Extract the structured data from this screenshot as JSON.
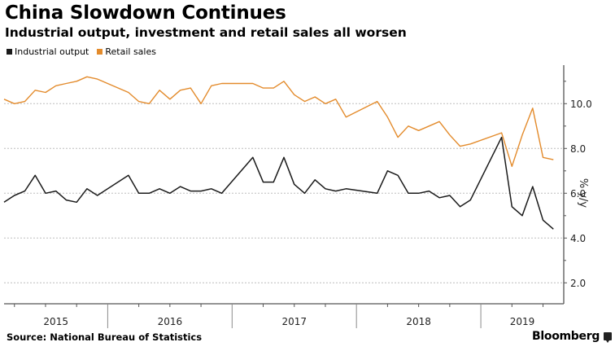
{
  "header": {
    "title": "China Slowdown Continues",
    "subtitle": "Industrial output, investment and retail sales all worsen"
  },
  "footer": {
    "source": "Source: National Bureau of Statistics",
    "brand": "Bloomberg"
  },
  "colors": {
    "industrial": "#1a1a1a",
    "retail": "#e38b2c",
    "grid": "#bdbdbd",
    "axis": "#555555"
  },
  "chart_data": {
    "type": "line",
    "title": "China Slowdown Continues",
    "subtitle": "Industrial output, investment and retail sales all worsen",
    "xlabel": "",
    "ylabel": "% y/y",
    "y_axis_side": "right",
    "ylim": [
      0.9,
      11.8
    ],
    "yticks": [
      2.0,
      4.0,
      6.0,
      8.0,
      10.0
    ],
    "yticks_minor": [
      3.0,
      5.0,
      7.0,
      9.0,
      11.0
    ],
    "ytick_labels": [
      "2.0",
      "4.0",
      "6.0",
      "8.0",
      "10.0"
    ],
    "grid": "horizontal dotted",
    "legend_position": "top-left",
    "x_range": [
      "2015-03",
      "2019-09"
    ],
    "year_labels": [
      "2015",
      "2016",
      "2017",
      "2018",
      "2019"
    ],
    "x": [
      "2015-03",
      "2015-04",
      "2015-05",
      "2015-06",
      "2015-07",
      "2015-08",
      "2015-09",
      "2015-10",
      "2015-11",
      "2015-12",
      "2016-03",
      "2016-04",
      "2016-05",
      "2016-06",
      "2016-07",
      "2016-08",
      "2016-09",
      "2016-10",
      "2016-11",
      "2016-12",
      "2017-03",
      "2017-04",
      "2017-05",
      "2017-06",
      "2017-07",
      "2017-08",
      "2017-09",
      "2017-10",
      "2017-11",
      "2017-12",
      "2018-03",
      "2018-04",
      "2018-05",
      "2018-06",
      "2018-07",
      "2018-08",
      "2018-09",
      "2018-10",
      "2018-11",
      "2018-12",
      "2019-03",
      "2019-04",
      "2019-05",
      "2019-06",
      "2019-07",
      "2019-08"
    ],
    "series": [
      {
        "name": "Industrial output",
        "values": [
          5.6,
          5.9,
          6.1,
          6.8,
          6.0,
          6.1,
          5.7,
          5.6,
          6.2,
          5.9,
          6.8,
          6.0,
          6.0,
          6.2,
          6.0,
          6.3,
          6.1,
          6.1,
          6.2,
          6.0,
          7.6,
          6.5,
          6.5,
          7.6,
          6.4,
          6.0,
          6.6,
          6.2,
          6.1,
          6.2,
          6.0,
          7.0,
          6.8,
          6.0,
          6.0,
          6.1,
          5.8,
          5.9,
          5.4,
          5.7,
          8.5,
          5.4,
          5.0,
          6.3,
          4.8,
          4.4
        ]
      },
      {
        "name": "Retail sales",
        "values": [
          10.2,
          10.0,
          10.1,
          10.6,
          10.5,
          10.8,
          10.9,
          11.0,
          11.2,
          11.1,
          10.5,
          10.1,
          10.0,
          10.6,
          10.2,
          10.6,
          10.7,
          10.0,
          10.8,
          10.9,
          10.9,
          10.7,
          10.7,
          11.0,
          10.4,
          10.1,
          10.3,
          10.0,
          10.2,
          9.4,
          10.1,
          9.4,
          8.5,
          9.0,
          8.8,
          9.0,
          9.2,
          8.6,
          8.1,
          8.2,
          8.7,
          7.2,
          8.6,
          9.8,
          7.6,
          7.5
        ]
      }
    ]
  }
}
